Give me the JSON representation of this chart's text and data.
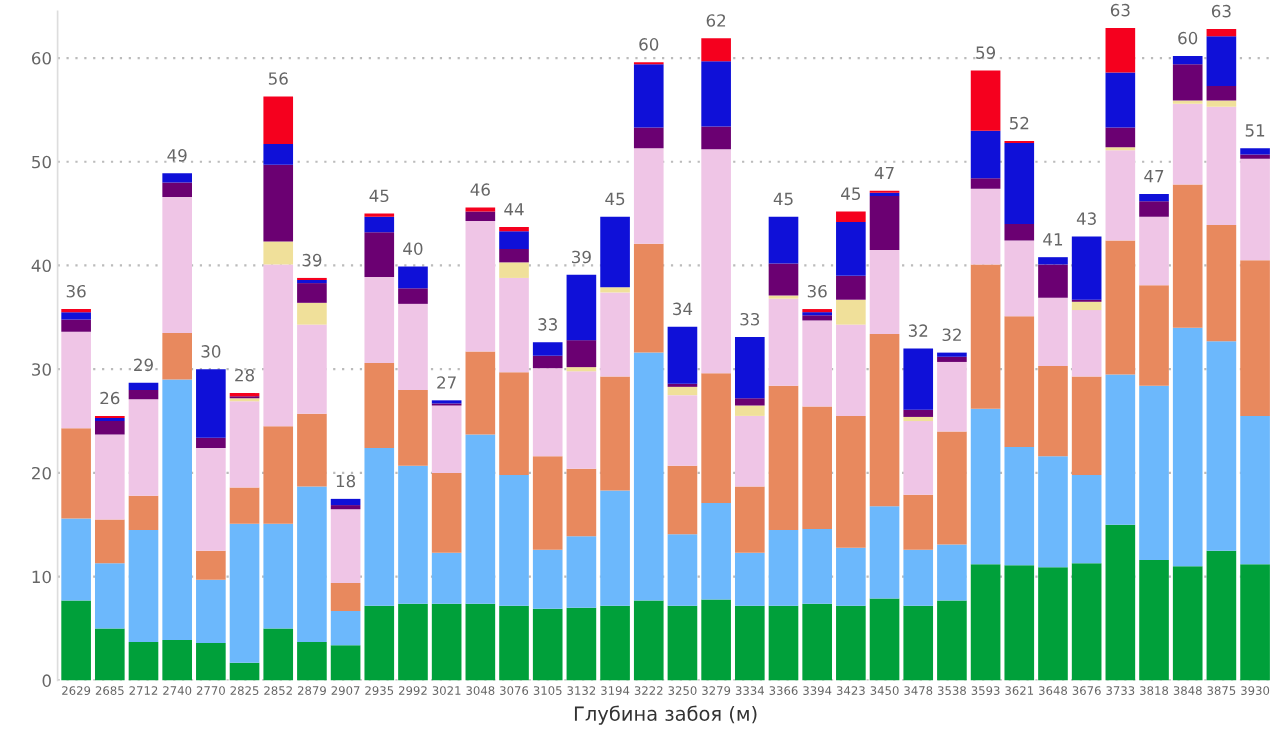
{
  "chart_data": {
    "type": "bar",
    "stacked": true,
    "xlabel": "Глубина забоя (м)",
    "categories": [
      "2629",
      "2685",
      "2712",
      "2740",
      "2770",
      "2825",
      "2852",
      "2879",
      "2907",
      "2935",
      "2992",
      "3021",
      "3048",
      "3076",
      "3105",
      "3132",
      "3194",
      "3222",
      "3250",
      "3279",
      "3334",
      "3366",
      "3394",
      "3423",
      "3450",
      "3478",
      "3538",
      "3593",
      "3621",
      "3648",
      "3676",
      "3733",
      "3818",
      "3848",
      "3875",
      "3930"
    ],
    "series": [
      {
        "color": "#00a03a",
        "values": [
          7.7,
          5.0,
          3.7,
          3.9,
          3.6,
          1.7,
          5.0,
          3.7,
          3.4,
          7.2,
          7.4,
          7.4,
          7.4,
          7.2,
          6.9,
          7.0,
          7.2,
          7.7,
          7.2,
          7.8,
          7.2,
          7.2,
          7.4,
          7.2,
          7.9,
          7.2,
          7.7,
          11.2,
          11.1,
          10.9,
          11.3,
          15.0,
          11.6,
          11.0,
          12.5,
          11.2
        ]
      },
      {
        "color": "#6cb8fc",
        "values": [
          7.9,
          6.3,
          10.8,
          25.1,
          6.1,
          13.4,
          10.1,
          15.0,
          3.3,
          15.2,
          13.3,
          4.9,
          16.3,
          12.6,
          5.7,
          6.9,
          11.1,
          23.9,
          6.9,
          9.3,
          5.1,
          7.3,
          7.2,
          5.6,
          8.9,
          5.4,
          5.4,
          15.0,
          11.4,
          10.7,
          8.5,
          14.5,
          16.8,
          23.0,
          20.2,
          14.3
        ]
      },
      {
        "color": "#e8895e",
        "values": [
          8.7,
          4.2,
          3.3,
          4.5,
          2.8,
          3.5,
          9.4,
          7.0,
          2.7,
          8.2,
          7.3,
          7.7,
          8.0,
          9.9,
          9.0,
          6.5,
          11.0,
          10.5,
          6.6,
          12.5,
          6.4,
          13.9,
          11.8,
          12.7,
          16.6,
          5.3,
          10.9,
          13.9,
          12.6,
          8.7,
          9.5,
          12.9,
          9.7,
          13.8,
          11.2,
          15.0
        ]
      },
      {
        "color": "#efc5e6",
        "values": [
          9.3,
          8.2,
          9.3,
          13.1,
          9.9,
          8.3,
          15.6,
          8.6,
          7.1,
          8.3,
          8.3,
          6.5,
          12.6,
          9.1,
          8.5,
          9.4,
          8.1,
          9.2,
          6.8,
          21.6,
          6.8,
          8.4,
          8.3,
          8.8,
          8.1,
          7.1,
          6.7,
          7.3,
          7.3,
          6.6,
          6.4,
          8.7,
          6.6,
          7.8,
          11.4,
          9.8
        ]
      },
      {
        "color": "#f0e09a",
        "values": [
          0,
          0,
          0,
          0,
          0,
          0.3,
          2.2,
          2.1,
          0,
          0,
          0,
          0,
          0,
          1.5,
          0,
          0.4,
          0.5,
          0,
          0.8,
          0,
          1.0,
          0.3,
          0,
          2.4,
          0,
          0.4,
          0,
          0,
          0,
          0,
          0.8,
          0.3,
          0,
          0.3,
          0.6,
          0
        ]
      },
      {
        "color": "#6b0072",
        "values": [
          1.2,
          1.3,
          0.9,
          1.4,
          1.0,
          0.2,
          7.4,
          1.9,
          0.4,
          4.3,
          1.5,
          0.2,
          0.9,
          1.3,
          1.2,
          2.6,
          0,
          2.0,
          0.3,
          2.2,
          0.7,
          3.1,
          0.5,
          2.3,
          5.2,
          0.7,
          0.5,
          1.0,
          1.6,
          3.2,
          0.2,
          1.9,
          1.5,
          3.5,
          1.4,
          0.4
        ]
      },
      {
        "color": "#0f10d8",
        "values": [
          0.7,
          0.3,
          0.7,
          0.9,
          6.6,
          0,
          2.0,
          0.3,
          0.6,
          1.5,
          2.1,
          0.3,
          0,
          1.7,
          1.3,
          6.3,
          6.8,
          6.1,
          5.5,
          6.3,
          5.9,
          4.5,
          0.3,
          5.2,
          0.3,
          5.9,
          0.4,
          4.6,
          7.8,
          0.7,
          6.1,
          5.3,
          0.7,
          0.8,
          4.8,
          0.6
        ]
      },
      {
        "color": "#f5001e",
        "values": [
          0.3,
          0.2,
          0,
          0,
          0,
          0.3,
          4.6,
          0.2,
          0,
          0.3,
          0,
          0,
          0.4,
          0.4,
          0,
          0,
          0,
          0.2,
          0,
          2.2,
          0,
          0,
          0.3,
          1.0,
          0.2,
          0,
          0,
          5.8,
          0.2,
          0,
          0,
          4.3,
          0,
          0,
          0.7,
          0
        ]
      }
    ],
    "totals": [
      "36",
      "26",
      "29",
      "49",
      "30",
      "28",
      "56",
      "39",
      "18",
      "45",
      "40",
      "27",
      "46",
      "44",
      "33",
      "39",
      "45",
      "60",
      "34",
      "62",
      "33",
      "45",
      "36",
      "45",
      "47",
      "32",
      "32",
      "59",
      "52",
      "41",
      "43",
      "63",
      "47",
      "60",
      "63",
      "51"
    ],
    "ylim": [
      0,
      64.5
    ],
    "yticks": [
      0,
      10,
      20,
      30,
      40,
      50,
      60
    ],
    "grid": "y"
  }
}
